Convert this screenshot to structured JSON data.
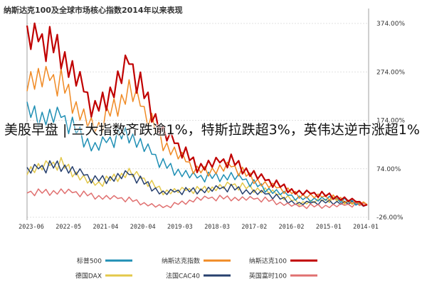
{
  "headline": "美股早盘 | 三大指数齐跌逾1%，特斯拉跌超3%，英伟达逆市涨超1%",
  "chart_data": {
    "type": "line",
    "title": "纳斯达克100及全球市场核心指数2014年以来表现",
    "y_ticks": [
      "374.00%",
      "274.00%",
      "174.00%",
      "74.00%",
      "-26.00%"
    ],
    "y_tick_values": [
      374,
      274,
      174,
      74,
      -26
    ],
    "ylim": [
      -26,
      374
    ],
    "x_ticks": [
      "2014-01",
      "2015-01",
      "2016-02",
      "2017-02",
      "2018-03",
      "2019-03",
      "2020-04",
      "2021-04",
      "2022-05",
      "2023-06"
    ],
    "x_axis_reversed": true,
    "legend_position": "bottom",
    "series": [
      {
        "name": "纳斯达克100",
        "color": "#c00000",
        "values": [
          0,
          18,
          25,
          50,
          90,
          80,
          150,
          290,
          190,
          320,
          345
        ]
      },
      {
        "name": "纳斯达克指数",
        "color": "#f08a24",
        "values": [
          0,
          14,
          20,
          42,
          78,
          68,
          130,
          240,
          150,
          250,
          268
        ]
      },
      {
        "name": "标普500",
        "color": "#1f8fb4",
        "values": [
          0,
          12,
          12,
          34,
          60,
          55,
          82,
          148,
          118,
          180,
          188
        ]
      },
      {
        "name": "英国富时100",
        "color": "#e07070",
        "values": [
          0,
          -2,
          -4,
          10,
          14,
          12,
          -6,
          10,
          18,
          28,
          24
        ]
      },
      {
        "name": "法国CAC40",
        "color": "#27406e",
        "values": [
          0,
          6,
          2,
          22,
          34,
          30,
          24,
          62,
          50,
          82,
          70
        ]
      },
      {
        "name": "德国DAX",
        "color": "#e3c84a",
        "values": [
          0,
          10,
          4,
          30,
          40,
          30,
          28,
          68,
          40,
          84,
          74
        ]
      }
    ]
  }
}
